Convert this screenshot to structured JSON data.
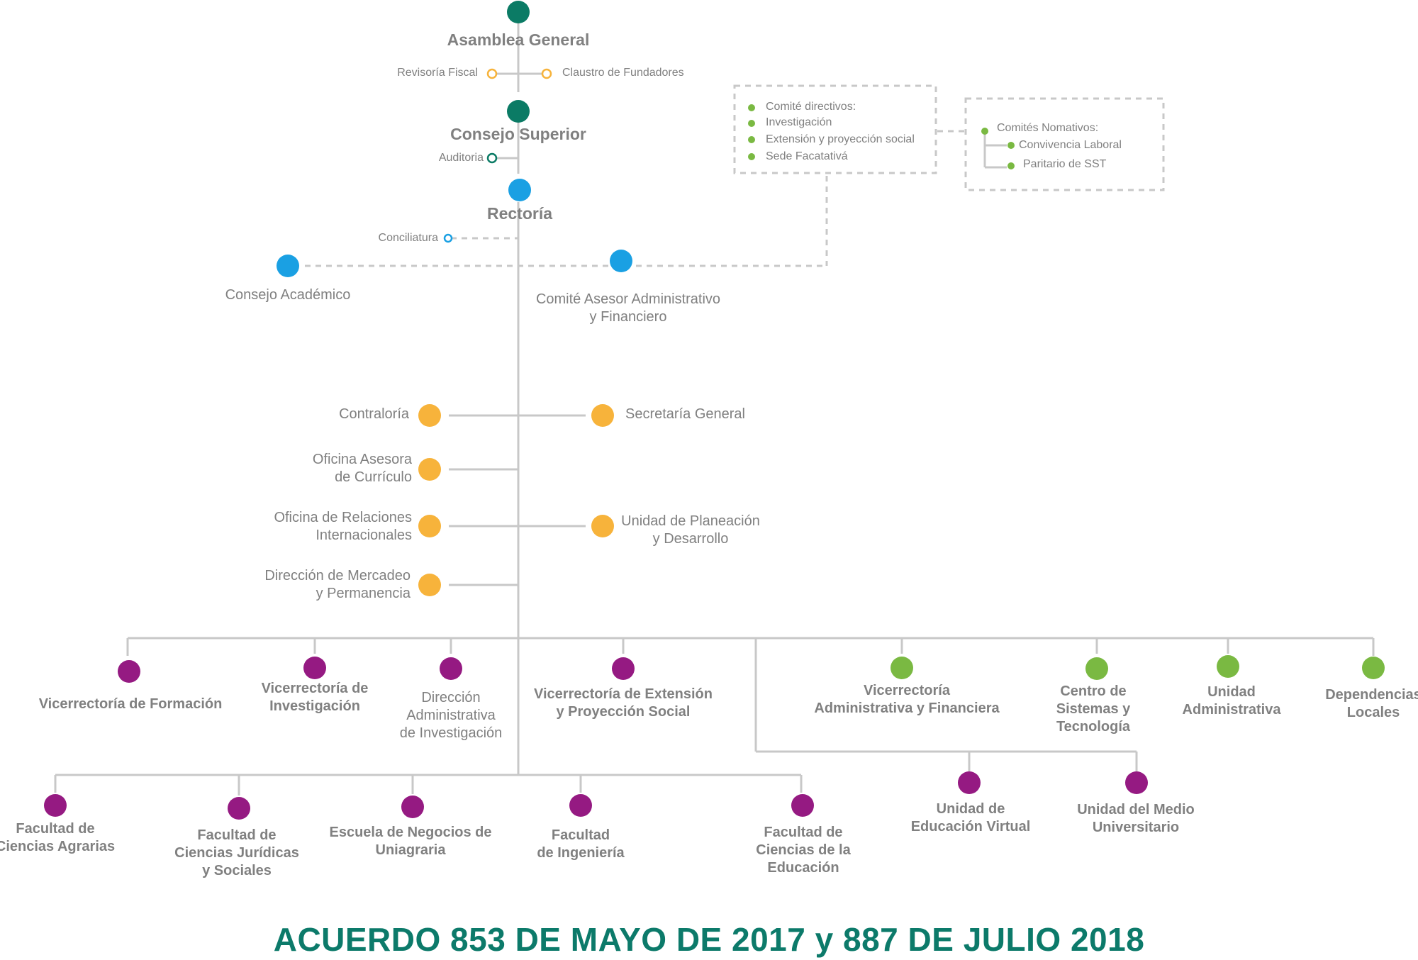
{
  "colors": {
    "teal": "#0b7b65",
    "blue": "#1aa0e3",
    "orange": "#f7b33b",
    "purple": "#951a82",
    "green": "#7ab942",
    "line": "#c8c8c8",
    "footer": "#0c7a6a"
  },
  "top": {
    "asamblea": "Asamblea General",
    "revisoria": "Revisoría Fiscal",
    "claustro": "Claustro de Fundadores",
    "consejo_superior": "Consejo Superior",
    "auditoria": "Auditoria",
    "rectoria": "Rectoría",
    "conciliatura": "Conciliatura",
    "consejo_academico": "Consejo Académico",
    "comite_asesor": "Comité Asesor Administrativo\ny Financiero"
  },
  "committees": {
    "box1": [
      "Comité directivos:",
      "Investigación",
      "Extensión y proyección social",
      "Sede Facatativá"
    ],
    "box2_title": "Comités Nomativos:",
    "box2": [
      "Convivencia Laboral",
      "Paritario de SST"
    ]
  },
  "staff": {
    "contraloria": "Contraloría",
    "secretaria": "Secretaría General",
    "oficina_curriculo": "Oficina Asesora\nde Currículo",
    "oficina_relaciones": "Oficina de Relaciones\nInternacionales",
    "unidad_planeacion": "Unidad de Planeación\ny Desarrollo",
    "direccion_mercadeo": "Dirección de Mercadeo\ny Permanencia"
  },
  "vice": {
    "formacion": "Vicerrectoría de Formación",
    "investigacion": "Vicerrectoría de\nInvestigación",
    "direccion_investigacion": "Dirección\nAdministrativa\nde Investigación",
    "extension": "Vicerrectoría de Extensión\ny Proyección Social",
    "administrativa": "Vicerrectoría\nAdministrativa y Financiera",
    "sistemas": "Centro de\nSistemas y\nTecnología",
    "unidad_administrativa": "Unidad\nAdministrativa",
    "dependencias": "Dependencias\nLocales"
  },
  "faculties": {
    "agrarias": "Facultad de\nCiencias Agrarias",
    "juridicas": "Facultad de\nCiencias Jurídicas\ny Sociales",
    "negocios": "Escuela de Negocios de\nUniagraria",
    "ingenieria": "Facultad\nde Ingeniería",
    "educacion": "Facultad de\nCiencias de la\nEducación",
    "virtual": "Unidad de\nEducación Virtual",
    "medio": "Unidad del Medio\nUniversitario"
  },
  "footer": "ACUERDO 853  DE  MAYO DE 2017 y 887 DE JULIO 2018"
}
